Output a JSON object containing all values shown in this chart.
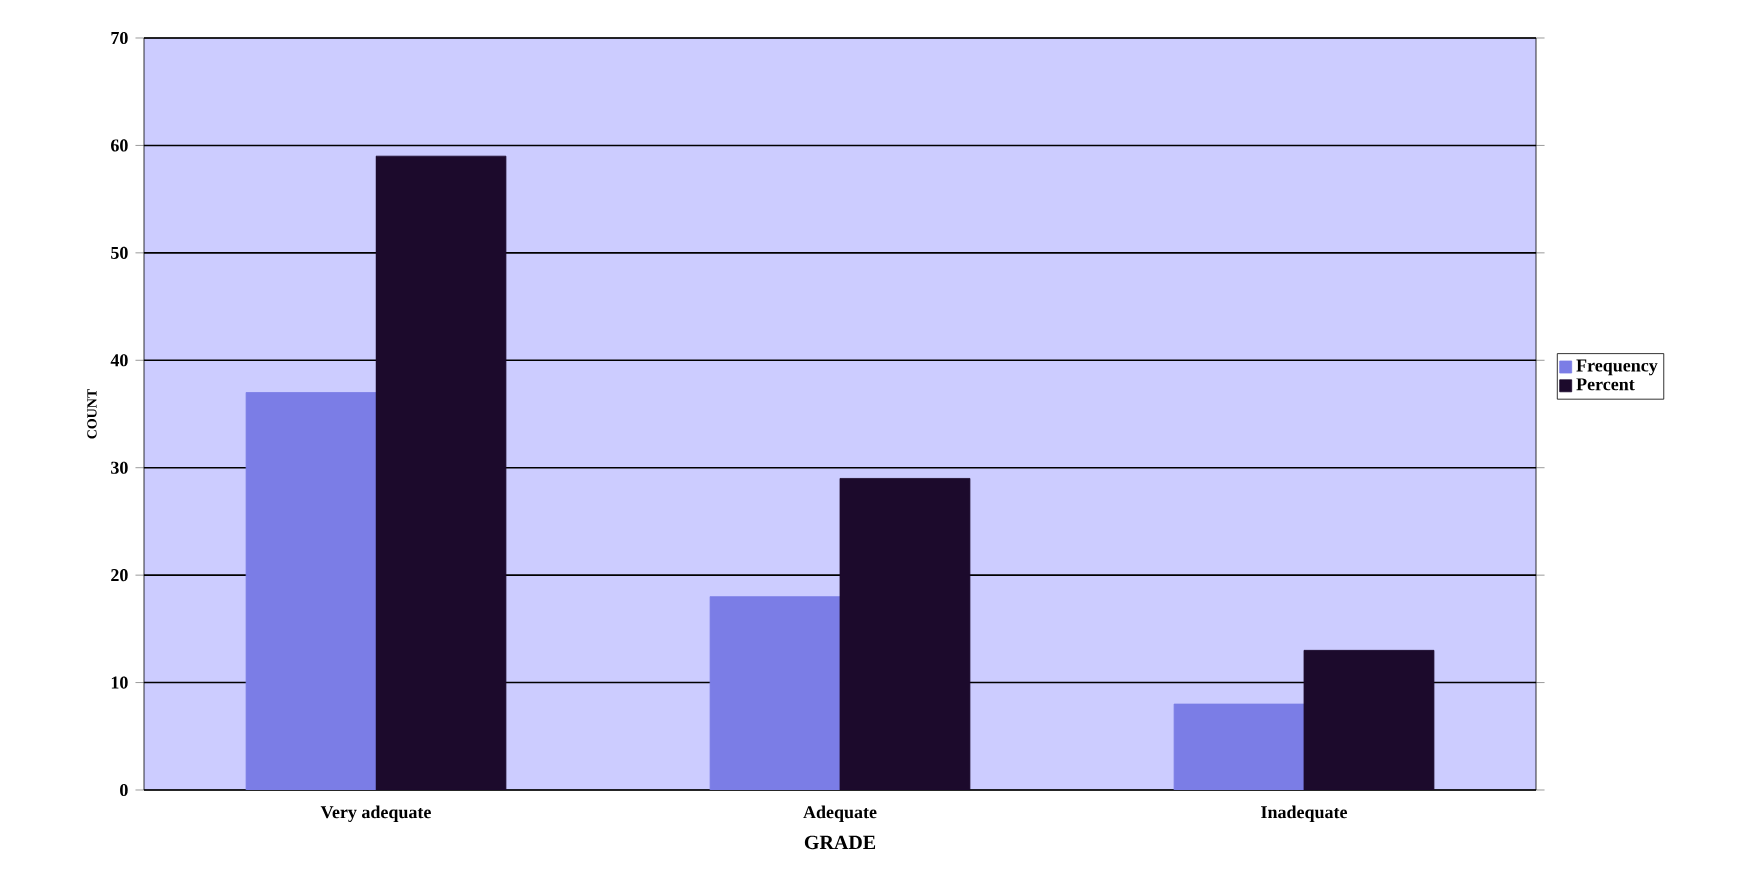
{
  "chart_data": {
    "type": "bar",
    "xlabel": "GRADE",
    "ylabel": "COUNT",
    "categories": [
      "Very adequate",
      "Adequate",
      "Inadequate"
    ],
    "series": [
      {
        "name": "Frequency",
        "color": "#7b7de6",
        "values": [
          37,
          18,
          8
        ]
      },
      {
        "name": "Percent",
        "color": "#1c0a2c",
        "values": [
          59,
          29,
          13
        ]
      }
    ],
    "ylim": [
      0,
      70
    ],
    "yticks": [
      0,
      10,
      20,
      30,
      40,
      50,
      60,
      70
    ],
    "grid": "y",
    "legend": "right"
  }
}
